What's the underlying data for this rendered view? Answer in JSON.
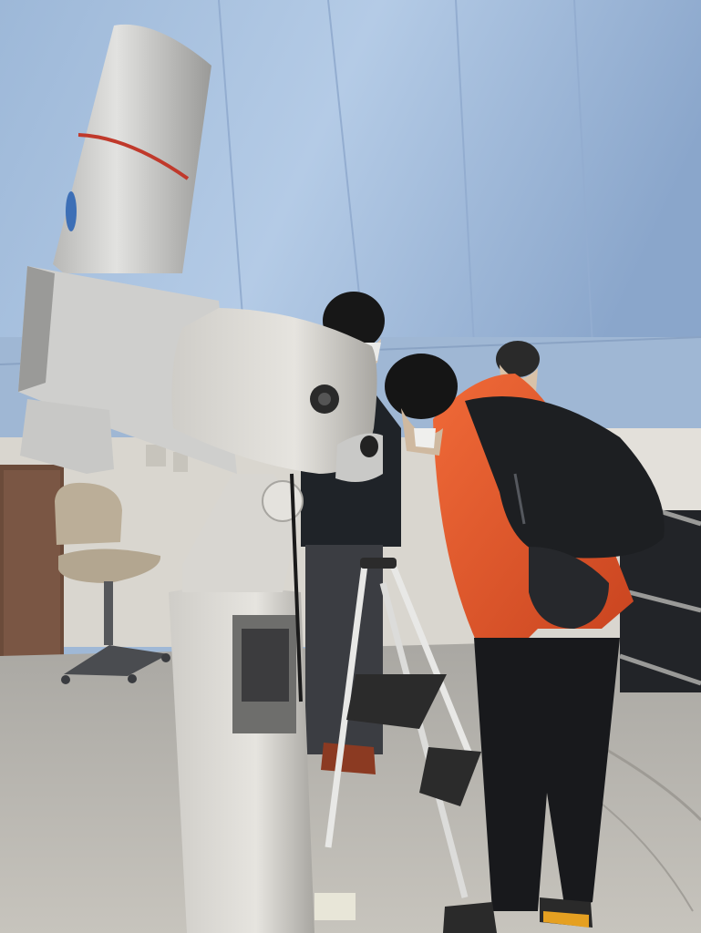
{
  "scene": {
    "description_tags": [
      "telescope",
      "observatory-dome",
      "people",
      "step-stool",
      "office-chair"
    ],
    "mount_brand_text": "",
    "colors": {
      "dome_wall": "#a9c3e0",
      "dome_shadow": "#6f8fb8",
      "floor": "#b9b6b0",
      "telescope_body": "#d4d4d2",
      "telescope_shadow": "#8e8e8c",
      "telescope_stripe": "#c0392b",
      "jacket_orange": "#e0532a",
      "backpack": "#1d1f22",
      "dark_clothing": "#1f2328",
      "chair": "#b9ad96"
    }
  }
}
